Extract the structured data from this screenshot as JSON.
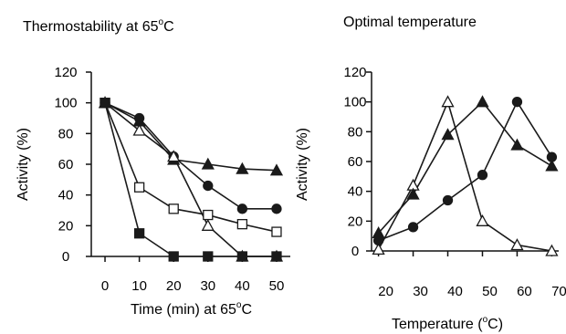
{
  "chart_data": [
    {
      "type": "line",
      "title_parts": [
        "Thermostability at 65",
        "o",
        "C"
      ],
      "xlabel_parts": [
        "Time (min) at 65",
        "o",
        "C"
      ],
      "ylabel": "Activity (%)",
      "xlim": [
        -4,
        54
      ],
      "ylim": [
        0,
        120
      ],
      "xticks": [
        0,
        10,
        20,
        30,
        40,
        50
      ],
      "yticks": [
        0,
        20,
        40,
        60,
        80,
        100,
        120
      ],
      "grid": false,
      "legend": "none",
      "x": [
        0,
        10,
        20,
        30,
        40,
        50
      ],
      "series": [
        {
          "marker": "triangle-filled",
          "values": [
            100,
            88,
            63,
            60,
            57,
            56
          ]
        },
        {
          "marker": "circle-filled",
          "values": [
            100,
            90,
            65,
            46,
            31,
            31
          ]
        },
        {
          "marker": "triangle-open",
          "values": [
            100,
            82,
            65,
            20,
            0,
            0
          ]
        },
        {
          "marker": "square-open",
          "values": [
            100,
            45,
            31,
            27,
            21,
            16
          ]
        },
        {
          "marker": "square-filled",
          "values": [
            100,
            15,
            0,
            0,
            0,
            0
          ]
        }
      ]
    },
    {
      "type": "line",
      "title": "Optimal temperature",
      "xlabel_parts": [
        "Temperature (",
        "o",
        "C)"
      ],
      "ylabel": "Activity (%)",
      "xlim": [
        18,
        72
      ],
      "ylim": [
        0,
        120
      ],
      "xticks": [
        20,
        30,
        40,
        50,
        60,
        70
      ],
      "yticks": [
        0,
        20,
        40,
        60,
        80,
        100,
        120
      ],
      "grid": false,
      "legend": "none",
      "series": [
        {
          "marker": "triangle-open",
          "x": [
            20,
            30,
            40,
            50,
            60,
            70
          ],
          "values": [
            1,
            44,
            100,
            20,
            4,
            0
          ]
        },
        {
          "marker": "triangle-filled",
          "x": [
            20,
            30,
            40,
            50,
            60,
            70
          ],
          "values": [
            12,
            38,
            78,
            100,
            71,
            57
          ]
        },
        {
          "marker": "circle-filled",
          "x": [
            20,
            30,
            40,
            50,
            60,
            70
          ],
          "values": [
            7,
            16,
            34,
            51,
            100,
            63
          ]
        }
      ]
    }
  ]
}
